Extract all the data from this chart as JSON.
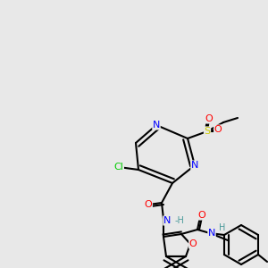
{
  "background_color": "#e8e8e8",
  "figsize": [
    3.0,
    3.0
  ],
  "dpi": 100,
  "bond_color": "#000000",
  "bond_width": 1.5,
  "atom_colors": {
    "N": "#0000ff",
    "O": "#ff0000",
    "Cl": "#00cc00",
    "S": "#cccc00",
    "C": "#000000",
    "H": "#4a9a9a"
  }
}
